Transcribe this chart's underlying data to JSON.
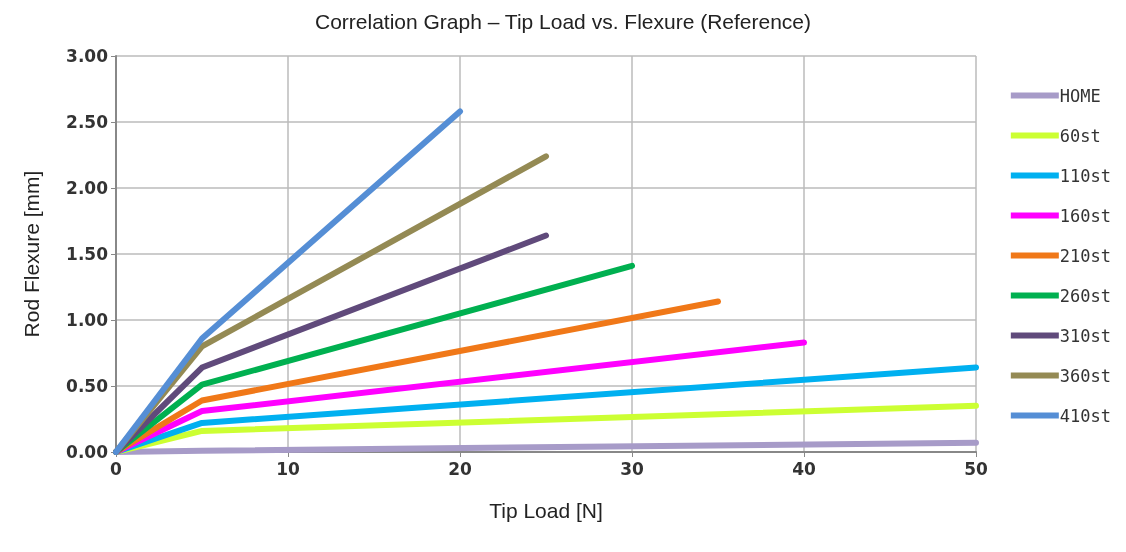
{
  "chart_data": {
    "type": "line",
    "title": "Correlation Graph – Tip Load vs. Flexure (Reference)",
    "xlabel": "Tip Load [N]",
    "ylabel": "Rod Flexure [mm]",
    "xlim": [
      0,
      50
    ],
    "xticks": [
      0,
      10,
      20,
      30,
      40,
      50
    ],
    "ylim": [
      0,
      3
    ],
    "yticks": [
      {
        "value": 0,
        "label": "0.00"
      },
      {
        "value": 0.5,
        "label": "0.50"
      },
      {
        "value": 1,
        "label": "1.00"
      },
      {
        "value": 1.5,
        "label": "1.50"
      },
      {
        "value": 2,
        "label": "2.00"
      },
      {
        "value": 2.5,
        "label": "2.50"
      },
      {
        "value": 3,
        "label": "3.00"
      }
    ],
    "grid": true,
    "legend": "right",
    "marker": "none",
    "line_style": "solid",
    "series": [
      {
        "name": "HOME",
        "color": "#a79bc8",
        "x": [
          0,
          5,
          50
        ],
        "values": [
          0,
          0.01,
          0.07
        ]
      },
      {
        "name": "60st",
        "color": "#ccff33",
        "x": [
          0,
          5,
          50
        ],
        "values": [
          0,
          0.16,
          0.35
        ]
      },
      {
        "name": "110st",
        "color": "#00b0f0",
        "x": [
          0,
          5,
          50
        ],
        "values": [
          0,
          0.22,
          0.64
        ]
      },
      {
        "name": "160st",
        "color": "#ff00ff",
        "x": [
          0,
          5,
          40
        ],
        "values": [
          0,
          0.31,
          0.83
        ]
      },
      {
        "name": "210st",
        "color": "#f07818",
        "x": [
          0,
          5,
          35
        ],
        "values": [
          0,
          0.39,
          1.14
        ]
      },
      {
        "name": "260st",
        "color": "#00b050",
        "x": [
          0,
          5,
          30
        ],
        "values": [
          0,
          0.51,
          1.41
        ]
      },
      {
        "name": "310st",
        "color": "#604a7b",
        "x": [
          0,
          5,
          25
        ],
        "values": [
          0,
          0.64,
          1.64
        ]
      },
      {
        "name": "360st",
        "color": "#948a54",
        "x": [
          0,
          5,
          25
        ],
        "values": [
          0,
          0.8,
          2.24
        ]
      },
      {
        "name": "410st",
        "color": "#558ed5",
        "x": [
          0,
          5,
          20
        ],
        "values": [
          0,
          0.86,
          2.58
        ]
      }
    ]
  }
}
